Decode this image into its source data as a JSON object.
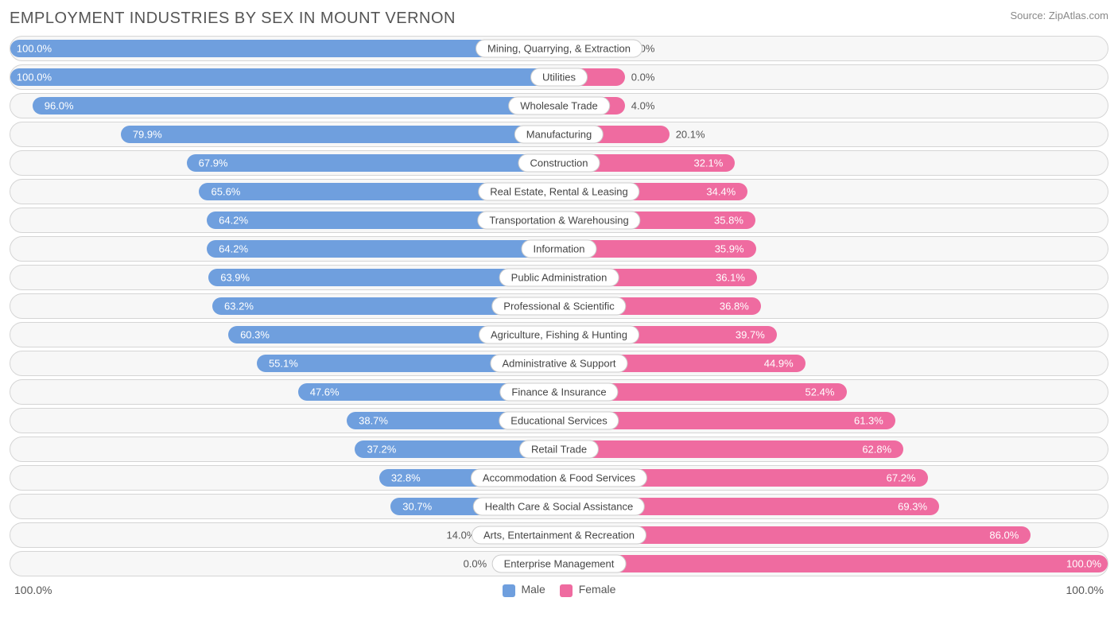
{
  "title": "EMPLOYMENT INDUSTRIES BY SEX IN MOUNT VERNON",
  "source": "Source: ZipAtlas.com",
  "colors": {
    "male_bar": "#6f9fde",
    "female_bar": "#ef6ba0",
    "row_bg": "#f7f7f7",
    "row_border": "#d5d5d5",
    "text_inside": "#ffffff",
    "text_outside": "#555555",
    "title_color": "#555555",
    "source_color": "#888888"
  },
  "legend": {
    "male": "Male",
    "female": "Female"
  },
  "axis": {
    "left": "100.0%",
    "right": "100.0%"
  },
  "label_inside_threshold": 25,
  "rows": [
    {
      "category": "Mining, Quarrying, & Extraction",
      "male": 100.0,
      "female": 0.0,
      "male_label": "100.0%",
      "female_label": "0.0%"
    },
    {
      "category": "Utilities",
      "male": 100.0,
      "female": 0.0,
      "male_label": "100.0%",
      "female_label": "0.0%"
    },
    {
      "category": "Wholesale Trade",
      "male": 96.0,
      "female": 4.0,
      "male_label": "96.0%",
      "female_label": "4.0%"
    },
    {
      "category": "Manufacturing",
      "male": 79.9,
      "female": 20.1,
      "male_label": "79.9%",
      "female_label": "20.1%"
    },
    {
      "category": "Construction",
      "male": 67.9,
      "female": 32.1,
      "male_label": "67.9%",
      "female_label": "32.1%"
    },
    {
      "category": "Real Estate, Rental & Leasing",
      "male": 65.6,
      "female": 34.4,
      "male_label": "65.6%",
      "female_label": "34.4%"
    },
    {
      "category": "Transportation & Warehousing",
      "male": 64.2,
      "female": 35.8,
      "male_label": "64.2%",
      "female_label": "35.8%"
    },
    {
      "category": "Information",
      "male": 64.2,
      "female": 35.9,
      "male_label": "64.2%",
      "female_label": "35.9%"
    },
    {
      "category": "Public Administration",
      "male": 63.9,
      "female": 36.1,
      "male_label": "63.9%",
      "female_label": "36.1%"
    },
    {
      "category": "Professional & Scientific",
      "male": 63.2,
      "female": 36.8,
      "male_label": "63.2%",
      "female_label": "36.8%"
    },
    {
      "category": "Agriculture, Fishing & Hunting",
      "male": 60.3,
      "female": 39.7,
      "male_label": "60.3%",
      "female_label": "39.7%"
    },
    {
      "category": "Administrative & Support",
      "male": 55.1,
      "female": 44.9,
      "male_label": "55.1%",
      "female_label": "44.9%"
    },
    {
      "category": "Finance & Insurance",
      "male": 47.6,
      "female": 52.4,
      "male_label": "47.6%",
      "female_label": "52.4%"
    },
    {
      "category": "Educational Services",
      "male": 38.7,
      "female": 61.3,
      "male_label": "38.7%",
      "female_label": "61.3%"
    },
    {
      "category": "Retail Trade",
      "male": 37.2,
      "female": 62.8,
      "male_label": "37.2%",
      "female_label": "62.8%"
    },
    {
      "category": "Accommodation & Food Services",
      "male": 32.8,
      "female": 67.2,
      "male_label": "32.8%",
      "female_label": "67.2%"
    },
    {
      "category": "Health Care & Social Assistance",
      "male": 30.7,
      "female": 69.3,
      "male_label": "30.7%",
      "female_label": "69.3%"
    },
    {
      "category": "Arts, Entertainment & Recreation",
      "male": 14.0,
      "female": 86.0,
      "male_label": "14.0%",
      "female_label": "86.0%"
    },
    {
      "category": "Enterprise Management",
      "male": 0.0,
      "female": 100.0,
      "male_label": "0.0%",
      "female_label": "100.0%"
    }
  ]
}
